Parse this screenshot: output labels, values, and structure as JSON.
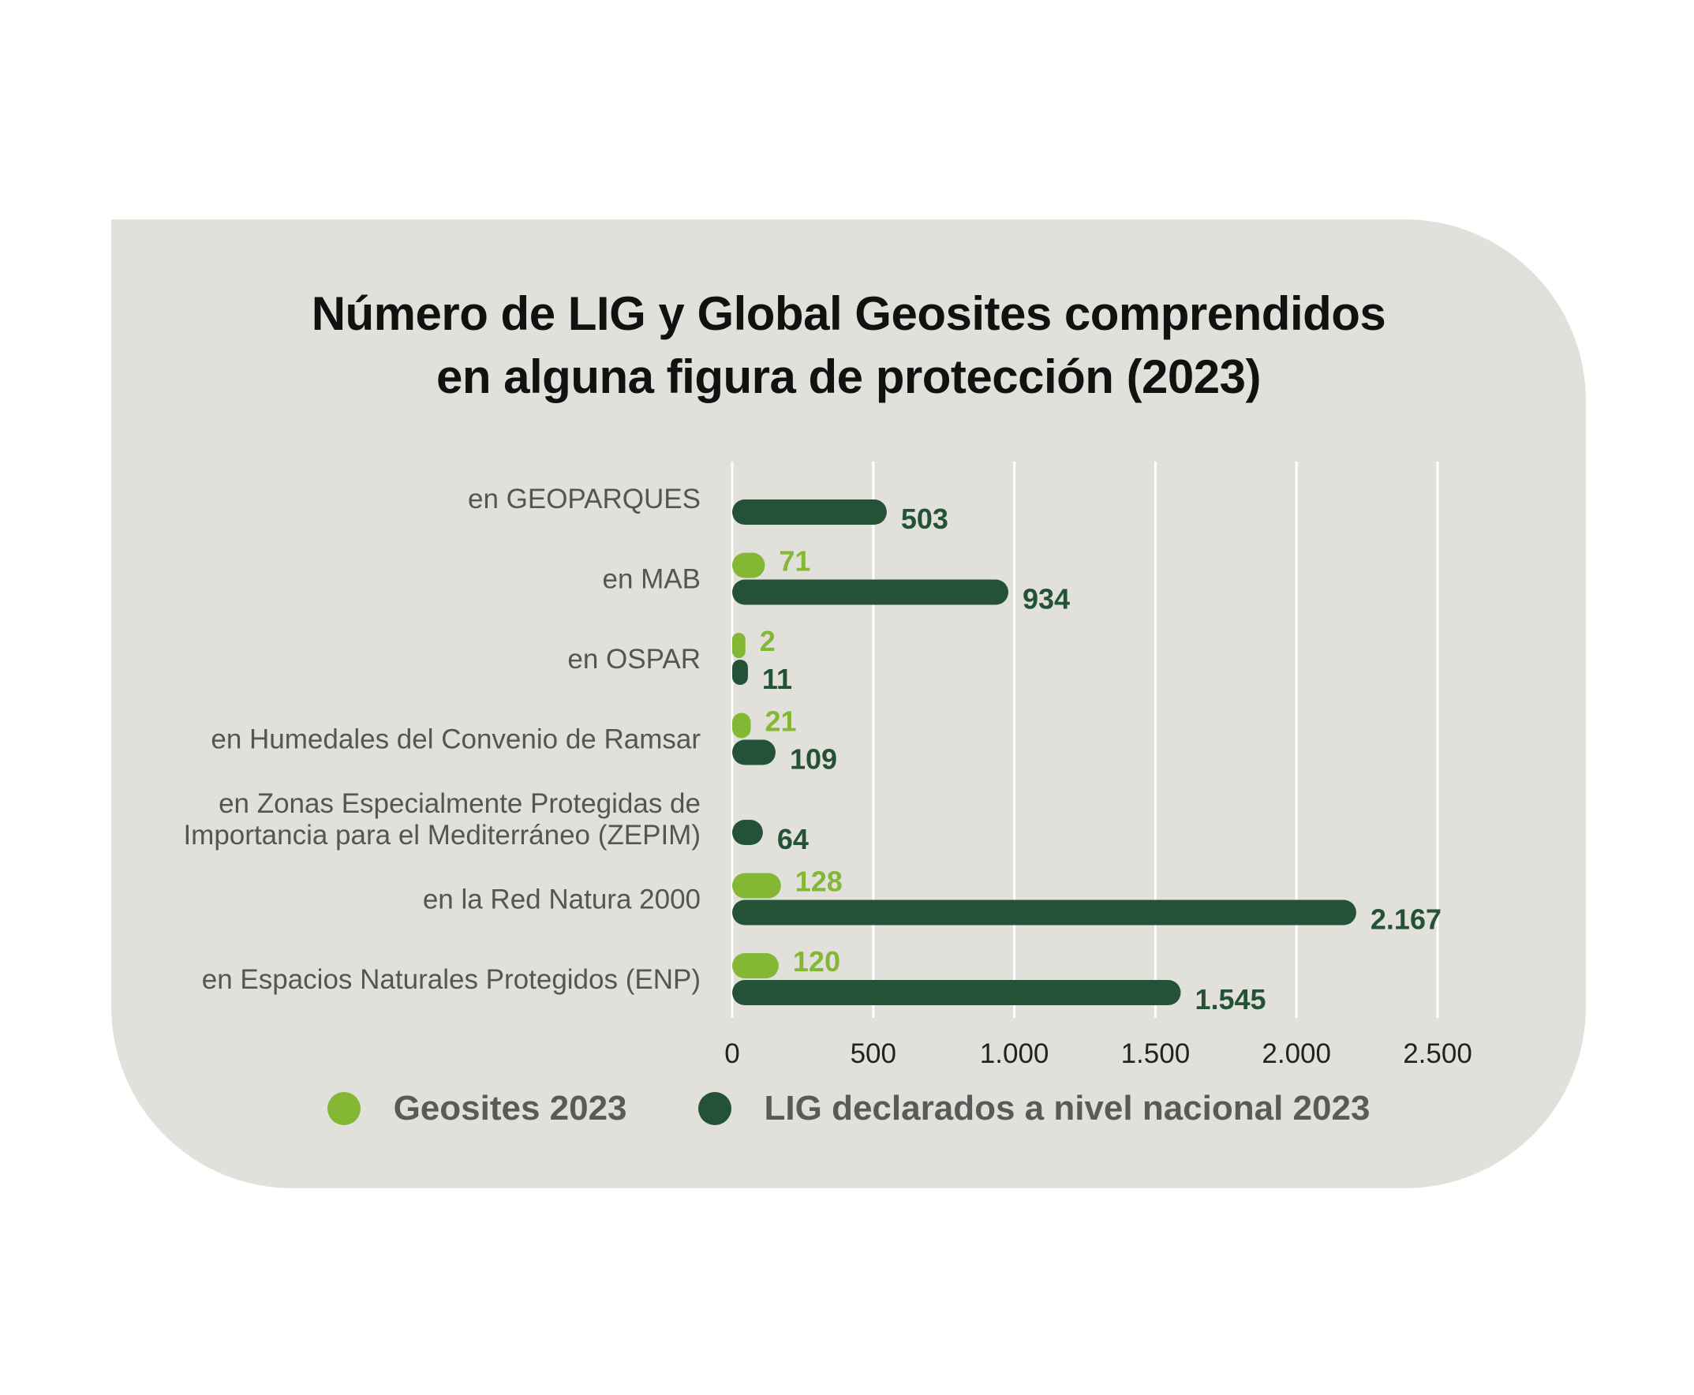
{
  "colors": {
    "geosites": "#84b733",
    "lig": "#245236",
    "panel": "#e2e0db",
    "grid": "#ffffff"
  },
  "chart_data": {
    "type": "bar",
    "orientation": "horizontal",
    "title": [
      "Número de LIG y Global Geosites comprendidos",
      "en alguna figura de protección (2023)"
    ],
    "categories": [
      [
        "en GEOPARQUES"
      ],
      [
        "en MAB"
      ],
      [
        "en OSPAR"
      ],
      [
        "en Humedales del Convenio de Ramsar"
      ],
      [
        "en Zonas Especialmente Protegidas de",
        "Importancia para el Mediterráneo (ZEPIM)"
      ],
      [
        "en la Red Natura 2000"
      ],
      [
        "en Espacios Naturales Protegidos (ENP)"
      ]
    ],
    "series": [
      {
        "name": "Geosites 2023",
        "values": [
          null,
          71,
          2,
          21,
          null,
          128,
          120
        ],
        "labels": [
          "",
          "71",
          "2",
          "21",
          "",
          "128",
          "120"
        ]
      },
      {
        "name": "LIG declarados a nivel nacional 2023",
        "values": [
          503,
          934,
          11,
          109,
          64,
          2167,
          1545
        ],
        "labels": [
          "503",
          "934",
          "11",
          "109",
          "64",
          "2.167",
          "1.545"
        ]
      }
    ],
    "xlim": [
      0,
      2500
    ],
    "xticks": [
      0,
      500,
      1000,
      1500,
      2000,
      2500
    ],
    "xtick_labels": [
      "0",
      "500",
      "1.000",
      "1.500",
      "2.000",
      "2.500"
    ],
    "grid": true,
    "legend_position": "bottom"
  }
}
